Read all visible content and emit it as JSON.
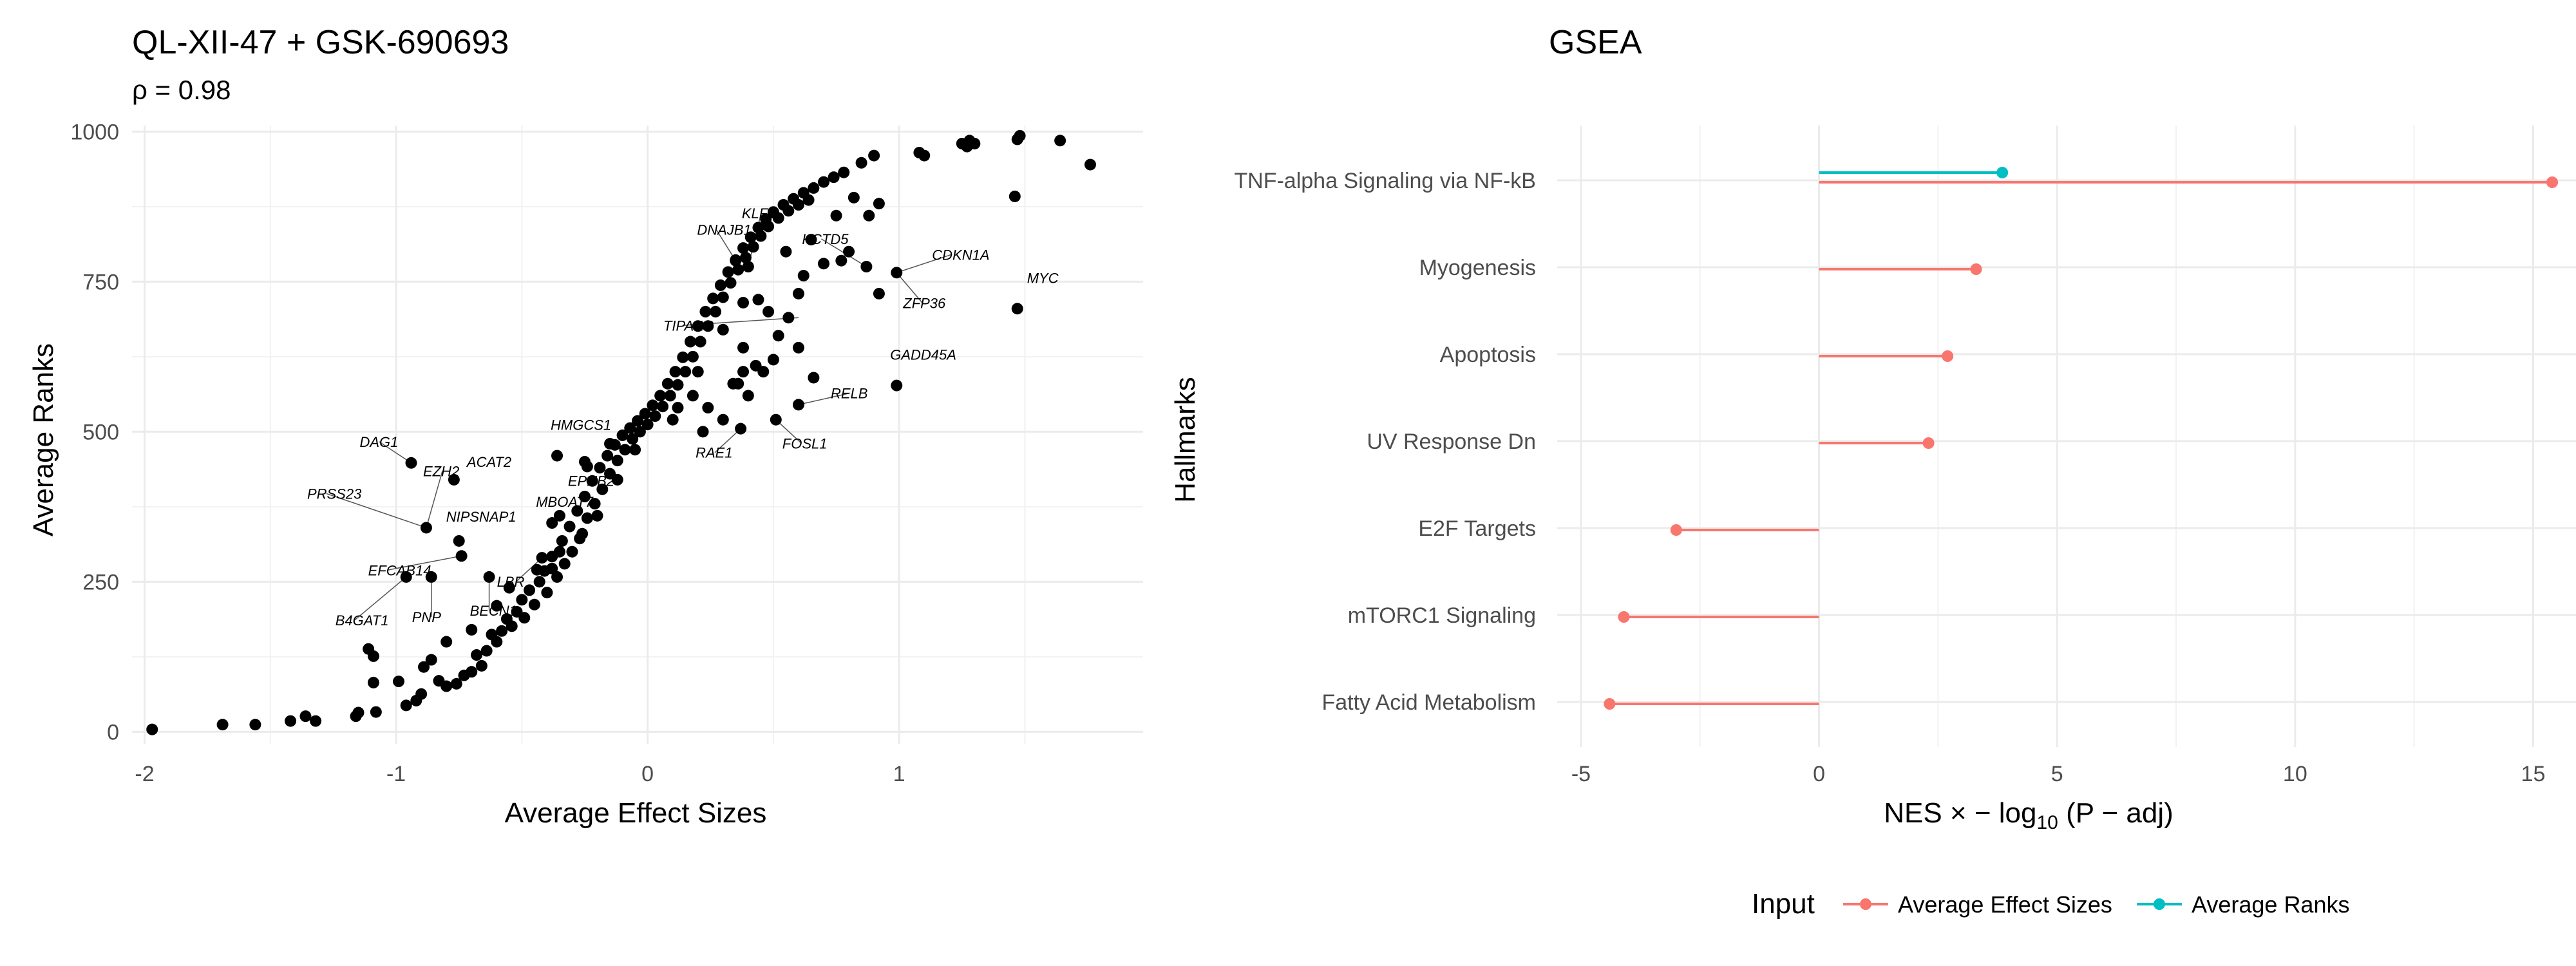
{
  "chart_data": [
    {
      "type": "scatter",
      "title": "QL-XII-47 + GSK-690693",
      "subtitle": "ρ = 0.98",
      "xlabel": "Average Effect Sizes",
      "ylabel": "Average Ranks",
      "xlim": [
        -2.05,
        1.97
      ],
      "ylim": [
        -20,
        1010
      ],
      "xticks": [
        {
          "v": -2,
          "label": "-2"
        },
        {
          "v": -1,
          "label": "-1"
        },
        {
          "v": 0,
          "label": "0"
        },
        {
          "v": 1,
          "label": "1"
        }
      ],
      "yticks": [
        {
          "v": 0,
          "label": "0"
        },
        {
          "v": 250,
          "label": "250"
        },
        {
          "v": 500,
          "label": "500"
        },
        {
          "v": 750,
          "label": "750"
        },
        {
          "v": 1000,
          "label": "1000"
        }
      ],
      "grid": true,
      "point_color": "#000000",
      "points": [
        [
          -1.97,
          4
        ],
        [
          -1.69,
          12
        ],
        [
          -1.56,
          12
        ],
        [
          -1.42,
          18
        ],
        [
          -1.36,
          26
        ],
        [
          -1.32,
          18
        ],
        [
          -1.16,
          26
        ],
        [
          -1.15,
          32
        ],
        [
          -1.08,
          33
        ],
        [
          -1.11,
          138
        ],
        [
          -1.09,
          126
        ],
        [
          -1.09,
          82
        ],
        [
          -0.99,
          84
        ],
        [
          -0.96,
          44
        ],
        [
          -0.92,
          52
        ],
        [
          -0.9,
          63
        ],
        [
          -0.89,
          108
        ],
        [
          -0.86,
          120
        ],
        [
          -0.83,
          85
        ],
        [
          -0.8,
          76
        ],
        [
          -0.76,
          80
        ],
        [
          -0.73,
          94
        ],
        [
          -0.7,
          100
        ],
        [
          -0.68,
          128
        ],
        [
          -0.66,
          110
        ],
        [
          -0.64,
          135
        ],
        [
          -0.62,
          162
        ],
        [
          -0.6,
          150
        ],
        [
          -0.58,
          168
        ],
        [
          -0.56,
          188
        ],
        [
          -0.54,
          176
        ],
        [
          -0.52,
          200
        ],
        [
          -0.5,
          220
        ],
        [
          -0.49,
          190
        ],
        [
          -0.47,
          236
        ],
        [
          -0.45,
          212
        ],
        [
          -0.43,
          250
        ],
        [
          -0.41,
          268
        ],
        [
          -0.4,
          232
        ],
        [
          -0.38,
          292
        ],
        [
          -0.36,
          258
        ],
        [
          -0.34,
          318
        ],
        [
          -0.33,
          280
        ],
        [
          -0.31,
          342
        ],
        [
          -0.3,
          300
        ],
        [
          -0.28,
          368
        ],
        [
          -0.27,
          322
        ],
        [
          -0.25,
          392
        ],
        [
          -0.24,
          356
        ],
        [
          -0.22,
          418
        ],
        [
          -0.21,
          380
        ],
        [
          -0.19,
          440
        ],
        [
          -0.18,
          404
        ],
        [
          -0.16,
          460
        ],
        [
          -0.15,
          430
        ],
        [
          -0.13,
          478
        ],
        [
          -0.12,
          452
        ],
        [
          -0.1,
          494
        ],
        [
          -0.09,
          470
        ],
        [
          -0.07,
          506
        ],
        [
          -0.06,
          488
        ],
        [
          -0.04,
          518
        ],
        [
          -0.03,
          500
        ],
        [
          -0.01,
          530
        ],
        [
          0.0,
          512
        ],
        [
          0.02,
          544
        ],
        [
          0.03,
          526
        ],
        [
          0.05,
          560
        ],
        [
          0.06,
          542
        ],
        [
          0.08,
          580
        ],
        [
          0.09,
          560
        ],
        [
          0.11,
          600
        ],
        [
          0.12,
          578
        ],
        [
          0.14,
          624
        ],
        [
          0.15,
          600
        ],
        [
          0.17,
          650
        ],
        [
          0.18,
          625
        ],
        [
          0.2,
          676
        ],
        [
          0.21,
          650
        ],
        [
          0.23,
          700
        ],
        [
          0.24,
          676
        ],
        [
          0.26,
          722
        ],
        [
          0.27,
          700
        ],
        [
          0.29,
          744
        ],
        [
          0.3,
          724
        ],
        [
          0.32,
          766
        ],
        [
          0.33,
          748
        ],
        [
          0.35,
          786
        ],
        [
          0.36,
          770
        ],
        [
          0.38,
          806
        ],
        [
          0.39,
          790
        ],
        [
          0.41,
          824
        ],
        [
          0.42,
          808
        ],
        [
          0.44,
          840
        ],
        [
          0.45,
          826
        ],
        [
          0.47,
          854
        ],
        [
          0.48,
          842
        ],
        [
          0.5,
          866
        ],
        [
          0.52,
          856
        ],
        [
          0.54,
          878
        ],
        [
          0.56,
          868
        ],
        [
          0.58,
          888
        ],
        [
          0.6,
          878
        ],
        [
          0.62,
          898
        ],
        [
          0.64,
          886
        ],
        [
          0.66,
          906
        ],
        [
          0.7,
          916
        ],
        [
          0.74,
          924
        ],
        [
          0.78,
          932
        ],
        [
          0.85,
          948
        ],
        [
          0.9,
          960
        ],
        [
          0.44,
          720
        ],
        [
          0.48,
          700
        ],
        [
          0.56,
          690
        ],
        [
          0.6,
          730
        ],
        [
          0.3,
          670
        ],
        [
          0.38,
          640
        ],
        [
          0.43,
          610
        ],
        [
          0.52,
          660
        ],
        [
          0.34,
          580
        ],
        [
          0.46,
          600
        ],
        [
          0.18,
          560
        ],
        [
          0.24,
          540
        ],
        [
          0.1,
          520
        ],
        [
          -0.05,
          470
        ],
        [
          -0.12,
          420
        ],
        [
          -0.2,
          360
        ],
        [
          -0.26,
          330
        ],
        [
          -0.35,
          300
        ],
        [
          -0.44,
          270
        ],
        [
          -0.55,
          240
        ],
        [
          -0.6,
          210
        ],
        [
          -0.7,
          170
        ],
        [
          -0.8,
          150
        ],
        [
          -0.25,
          450
        ],
        [
          -0.35,
          360
        ],
        [
          -0.15,
          480
        ],
        [
          0.12,
          540
        ],
        [
          0.2,
          600
        ],
        [
          0.55,
          800
        ],
        [
          0.65,
          820
        ],
        [
          0.75,
          860
        ],
        [
          0.82,
          890
        ],
        [
          0.8,
          800
        ],
        [
          0.88,
          860
        ],
        [
          0.92,
          880
        ],
        [
          0.92,
          730
        ],
        [
          0.62,
          760
        ],
        [
          0.7,
          780
        ],
        [
          0.6,
          640
        ],
        [
          0.5,
          620
        ],
        [
          0.4,
          560
        ],
        [
          0.3,
          520
        ],
        [
          0.22,
          500
        ],
        [
          1.08,
          965
        ],
        [
          1.1,
          960
        ],
        [
          1.25,
          980
        ],
        [
          1.27,
          975
        ],
        [
          1.28,
          985
        ],
        [
          1.3,
          980
        ],
        [
          1.47,
          987
        ],
        [
          1.48,
          993
        ],
        [
          1.64,
          985
        ],
        [
          1.76,
          945
        ],
        [
          1.46,
          892
        ],
        [
          1.47,
          705
        ],
        [
          0.99,
          577
        ],
        [
          0.99,
          765
        ],
        [
          0.87,
          775
        ],
        [
          0.77,
          785
        ],
        [
          0.38,
          715
        ],
        [
          0.4,
          775
        ],
        [
          0.35,
          785
        ],
        [
          0.6,
          545
        ],
        [
          0.66,
          590
        ],
        [
          0.51,
          520
        ],
        [
          0.37,
          505
        ],
        [
          0.36,
          580
        ],
        [
          0.38,
          600
        ],
        [
          -0.94,
          448
        ],
        [
          -0.77,
          420
        ],
        [
          -0.88,
          340
        ],
        [
          -0.75,
          318
        ],
        [
          -0.74,
          293
        ],
        [
          -0.96,
          258
        ],
        [
          -0.86,
          258
        ],
        [
          -0.63,
          258
        ],
        [
          -0.38,
          348
        ],
        [
          -0.24,
          442
        ],
        [
          -0.36,
          460
        ],
        [
          -0.38,
          272
        ],
        [
          -0.42,
          290
        ]
      ],
      "labels": [
        {
          "gene": "CDKN1A",
          "x": 0.99,
          "y": 765
        },
        {
          "gene": "KCTD5",
          "x": 0.87,
          "y": 775
        },
        {
          "gene": "ZFP36",
          "x": 0.99,
          "y": 765
        },
        {
          "gene": "MYC",
          "x": 1.47,
          "y": 705
        },
        {
          "gene": "KLF2",
          "x": 0.4,
          "y": 775
        },
        {
          "gene": "DNAJB1",
          "x": 0.35,
          "y": 785
        },
        {
          "gene": "TIPARP",
          "x": 0.6,
          "y": 690
        },
        {
          "gene": "GADD45A",
          "x": 0.99,
          "y": 577
        },
        {
          "gene": "RELB",
          "x": 0.6,
          "y": 545
        },
        {
          "gene": "FOSL1",
          "x": 0.51,
          "y": 520
        },
        {
          "gene": "RAE1",
          "x": 0.37,
          "y": 505
        },
        {
          "gene": "HMGCS1",
          "x": -0.36,
          "y": 460
        },
        {
          "gene": "EPHB2",
          "x": -0.24,
          "y": 442
        },
        {
          "gene": "DAG1",
          "x": -0.94,
          "y": 448
        },
        {
          "gene": "ACAT2",
          "x": -0.77,
          "y": 420
        },
        {
          "gene": "EZH2",
          "x": -0.88,
          "y": 340
        },
        {
          "gene": "PRSS23",
          "x": -0.88,
          "y": 340
        },
        {
          "gene": "NIPSNAP1",
          "x": -0.75,
          "y": 318
        },
        {
          "gene": "MBOAT7",
          "x": -0.38,
          "y": 348
        },
        {
          "gene": "EFCAB14",
          "x": -0.74,
          "y": 293
        },
        {
          "gene": "LBR",
          "x": -0.42,
          "y": 290
        },
        {
          "gene": "B4GAT1",
          "x": -0.96,
          "y": 258
        },
        {
          "gene": "PNP",
          "x": -0.86,
          "y": 258
        },
        {
          "gene": "BECN1",
          "x": -0.63,
          "y": 258
        }
      ]
    },
    {
      "type": "lollipop",
      "title": "GSEA",
      "xlabel": "NES × −log10 (P − adj)",
      "ylabel": "Hallmarks",
      "xlim": [
        -5.5,
        15.9
      ],
      "xticks": [
        {
          "v": -5,
          "label": "-5"
        },
        {
          "v": 0,
          "label": "0"
        },
        {
          "v": 5,
          "label": "5"
        },
        {
          "v": 10,
          "label": "10"
        },
        {
          "v": 15,
          "label": "15"
        }
      ],
      "grid": true,
      "legend": {
        "title": "Input",
        "position": "bottom"
      },
      "series": [
        {
          "name": "Average Effect Sizes",
          "color": "#F8766D"
        },
        {
          "name": "Average Ranks",
          "color": "#00BFC4"
        }
      ],
      "categories": [
        "TNF-alpha Signaling via NF-kB",
        "Myogenesis",
        "Apoptosis",
        "UV Response Dn",
        "E2F Targets",
        "mTORC1 Signaling",
        "Fatty Acid Metabolism"
      ],
      "values": [
        {
          "category": "TNF-alpha Signaling via NF-kB",
          "series": "Average Effect Sizes",
          "value": 15.4
        },
        {
          "category": "TNF-alpha Signaling via NF-kB",
          "series": "Average Ranks",
          "value": 3.85
        },
        {
          "category": "Myogenesis",
          "series": "Average Effect Sizes",
          "value": 3.3
        },
        {
          "category": "Apoptosis",
          "series": "Average Effect Sizes",
          "value": 2.7
        },
        {
          "category": "UV Response Dn",
          "series": "Average Effect Sizes",
          "value": 2.3
        },
        {
          "category": "E2F Targets",
          "series": "Average Effect Sizes",
          "value": -3.0
        },
        {
          "category": "mTORC1 Signaling",
          "series": "Average Effect Sizes",
          "value": -4.1
        },
        {
          "category": "Fatty Acid Metabolism",
          "series": "Average Effect Sizes",
          "value": -4.4
        }
      ]
    }
  ]
}
